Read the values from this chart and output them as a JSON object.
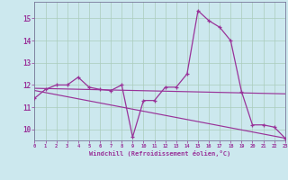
{
  "bg_color": "#cce8ee",
  "line_color": "#993399",
  "grid_color": "#aaccbb",
  "xlabel": "Windchill (Refroidissement éolien,°C)",
  "x_hours": [
    0,
    1,
    2,
    3,
    4,
    5,
    6,
    7,
    8,
    9,
    10,
    11,
    12,
    13,
    14,
    15,
    16,
    17,
    18,
    19,
    20,
    21,
    22,
    23
  ],
  "main_y": [
    11.4,
    11.8,
    12.0,
    12.0,
    12.35,
    11.9,
    11.8,
    11.75,
    12.0,
    9.65,
    11.3,
    11.3,
    11.9,
    11.9,
    12.5,
    15.35,
    14.9,
    14.6,
    14.0,
    11.7,
    10.2,
    10.2,
    10.1,
    9.6
  ],
  "trend1_x": [
    0,
    23
  ],
  "trend1_y": [
    11.85,
    11.6
  ],
  "trend2_x": [
    0,
    23
  ],
  "trend2_y": [
    11.75,
    9.6
  ],
  "ylim": [
    9.5,
    15.75
  ],
  "xlim": [
    0,
    23
  ],
  "yticks": [
    10,
    11,
    12,
    13,
    14,
    15
  ],
  "xticks": [
    0,
    1,
    2,
    3,
    4,
    5,
    6,
    7,
    8,
    9,
    10,
    11,
    12,
    13,
    14,
    15,
    16,
    17,
    18,
    19,
    20,
    21,
    22,
    23
  ]
}
